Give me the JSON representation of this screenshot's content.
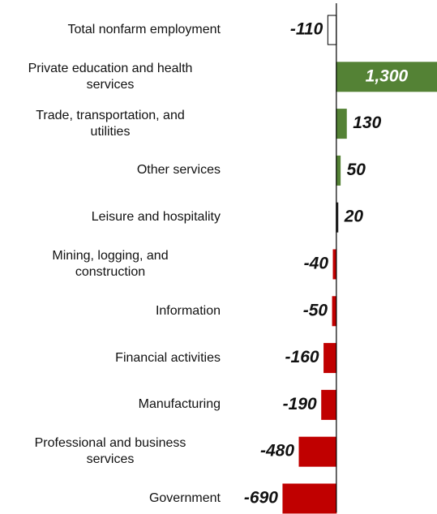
{
  "chart_data": {
    "type": "barh",
    "categories": [
      "Total nonfarm employment",
      "Private education and health\nservices",
      "Trade, transportation, and\nutilities",
      "Other services",
      "Leisure and hospitality",
      "Mining, logging, and\nconstruction",
      "Information",
      "Financial activities",
      "Manufacturing",
      "Professional and business\nservices",
      "Government"
    ],
    "values": [
      -110,
      1300,
      130,
      50,
      20,
      -40,
      -50,
      -160,
      -190,
      -480,
      -690
    ],
    "value_labels": [
      "-110",
      "1,300",
      "130",
      "50",
      "20",
      "-40",
      "-50",
      "-160",
      "-190",
      "-480",
      "-690"
    ],
    "colors": [
      "#ffffff",
      "#548235",
      "#548235",
      "#548235",
      "#222222",
      "#c00000",
      "#c00000",
      "#c00000",
      "#c00000",
      "#c00000",
      "#c00000"
    ],
    "xlim": [
      -700,
      1300
    ]
  }
}
